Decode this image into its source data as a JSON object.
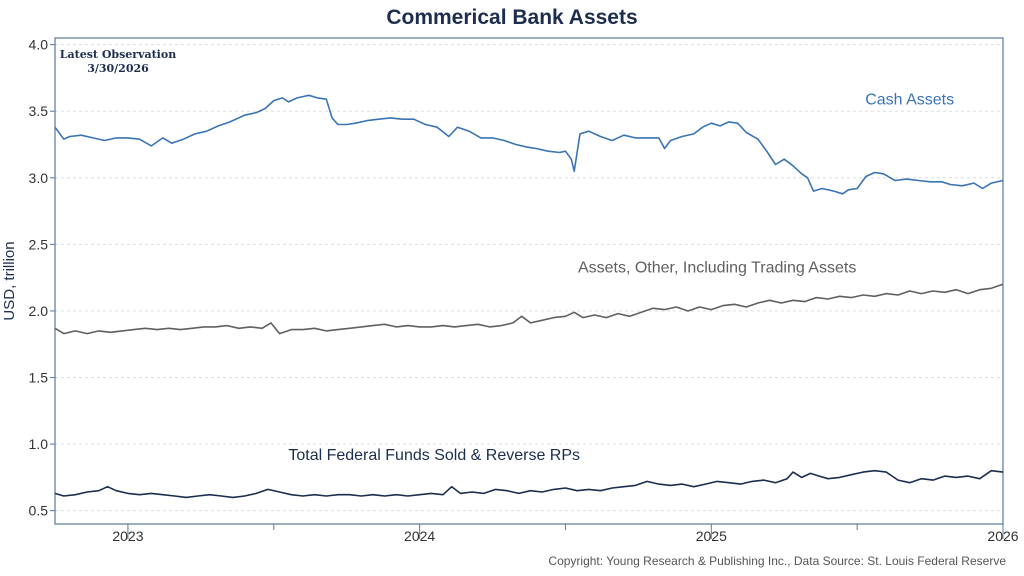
{
  "title": "Commerical Bank Assets",
  "observation": {
    "heading": "Latest Observation",
    "date": "3/30/2026"
  },
  "copyright": "Copyright: Young Research & Publishing Inc., Data Source: St. Louis Federal Reserve",
  "colors": {
    "cash": "#3a74b4",
    "other": "#606060",
    "funds": "#1c2d4f",
    "axis": "#5a7a9a",
    "grid": "#dddddd"
  },
  "chart_data": {
    "type": "line",
    "title": "Commerical Bank Assets",
    "ylabel": "USD, trillion",
    "xlabel": "",
    "ylim": [
      0.4,
      4.05
    ],
    "yticks": [
      0.5,
      1.0,
      1.5,
      2.0,
      2.5,
      3.0,
      3.5,
      4.0
    ],
    "ytick_labels": [
      "0.5",
      "1.0",
      "1.5",
      "2.0",
      "2.5",
      "3.0",
      "3.5",
      "4.0"
    ],
    "xlim": [
      2022.75,
      2026.0
    ],
    "year_ticks": [
      2023,
      2024,
      2025,
      2026
    ],
    "x_labels": [
      {
        "x": 2023.0,
        "text": "2023"
      },
      {
        "x": 2024.0,
        "text": "2024"
      },
      {
        "x": 2025.0,
        "text": "2025"
      },
      {
        "x": 2026.0,
        "text": "2026"
      }
    ],
    "x_minor_ticks": [
      2023.5,
      2024.5,
      2025.5
    ],
    "grid": true,
    "series": [
      {
        "name": "Cash Assets",
        "label_at": {
          "x": 2025.68,
          "y": 3.55
        },
        "points": [
          [
            2022.75,
            3.38
          ],
          [
            2022.78,
            3.29
          ],
          [
            2022.8,
            3.31
          ],
          [
            2022.84,
            3.32
          ],
          [
            2022.88,
            3.3
          ],
          [
            2022.92,
            3.28
          ],
          [
            2022.96,
            3.3
          ],
          [
            2023.0,
            3.3
          ],
          [
            2023.04,
            3.29
          ],
          [
            2023.08,
            3.24
          ],
          [
            2023.12,
            3.3
          ],
          [
            2023.15,
            3.26
          ],
          [
            2023.19,
            3.29
          ],
          [
            2023.23,
            3.33
          ],
          [
            2023.27,
            3.35
          ],
          [
            2023.31,
            3.39
          ],
          [
            2023.35,
            3.42
          ],
          [
            2023.4,
            3.47
          ],
          [
            2023.44,
            3.49
          ],
          [
            2023.47,
            3.52
          ],
          [
            2023.5,
            3.58
          ],
          [
            2023.53,
            3.6
          ],
          [
            2023.55,
            3.57
          ],
          [
            2023.58,
            3.6
          ],
          [
            2023.6,
            3.61
          ],
          [
            2023.62,
            3.62
          ],
          [
            2023.65,
            3.6
          ],
          [
            2023.68,
            3.59
          ],
          [
            2023.7,
            3.45
          ],
          [
            2023.72,
            3.4
          ],
          [
            2023.75,
            3.4
          ],
          [
            2023.78,
            3.41
          ],
          [
            2023.82,
            3.43
          ],
          [
            2023.86,
            3.44
          ],
          [
            2023.9,
            3.45
          ],
          [
            2023.94,
            3.44
          ],
          [
            2023.98,
            3.44
          ],
          [
            2024.02,
            3.4
          ],
          [
            2024.06,
            3.38
          ],
          [
            2024.1,
            3.31
          ],
          [
            2024.13,
            3.38
          ],
          [
            2024.17,
            3.35
          ],
          [
            2024.21,
            3.3
          ],
          [
            2024.25,
            3.3
          ],
          [
            2024.29,
            3.28
          ],
          [
            2024.33,
            3.25
          ],
          [
            2024.37,
            3.23
          ],
          [
            2024.4,
            3.22
          ],
          [
            2024.44,
            3.2
          ],
          [
            2024.48,
            3.19
          ],
          [
            2024.5,
            3.2
          ],
          [
            2024.52,
            3.14
          ],
          [
            2024.53,
            3.05
          ],
          [
            2024.55,
            3.33
          ],
          [
            2024.58,
            3.35
          ],
          [
            2024.62,
            3.31
          ],
          [
            2024.66,
            3.28
          ],
          [
            2024.7,
            3.32
          ],
          [
            2024.74,
            3.3
          ],
          [
            2024.78,
            3.3
          ],
          [
            2024.82,
            3.3
          ],
          [
            2024.84,
            3.22
          ],
          [
            2024.86,
            3.28
          ],
          [
            2024.9,
            3.31
          ],
          [
            2024.94,
            3.33
          ],
          [
            2024.97,
            3.38
          ],
          [
            2025.0,
            3.41
          ],
          [
            2025.03,
            3.39
          ],
          [
            2025.06,
            3.42
          ],
          [
            2025.09,
            3.41
          ],
          [
            2025.12,
            3.34
          ],
          [
            2025.16,
            3.29
          ],
          [
            2025.19,
            3.2
          ],
          [
            2025.22,
            3.1
          ],
          [
            2025.25,
            3.14
          ],
          [
            2025.28,
            3.09
          ],
          [
            2025.31,
            3.03
          ],
          [
            2025.33,
            3.0
          ],
          [
            2025.35,
            2.9
          ],
          [
            2025.38,
            2.92
          ],
          [
            2025.42,
            2.9
          ],
          [
            2025.45,
            2.88
          ],
          [
            2025.47,
            2.91
          ],
          [
            2025.5,
            2.92
          ],
          [
            2025.53,
            3.01
          ],
          [
            2025.56,
            3.04
          ],
          [
            2025.59,
            3.03
          ],
          [
            2025.63,
            2.98
          ],
          [
            2025.67,
            2.99
          ],
          [
            2025.71,
            2.98
          ],
          [
            2025.75,
            2.97
          ],
          [
            2025.79,
            2.97
          ],
          [
            2025.82,
            2.95
          ],
          [
            2025.86,
            2.94
          ],
          [
            2025.9,
            2.96
          ],
          [
            2025.93,
            2.92
          ],
          [
            2025.96,
            2.96
          ],
          [
            2026.0,
            2.98
          ]
        ]
      },
      {
        "name": "Assets, Other, Including Trading Assets",
        "label_at": {
          "x": 2025.02,
          "y": 2.29
        },
        "points": [
          [
            2022.75,
            1.87
          ],
          [
            2022.78,
            1.83
          ],
          [
            2022.82,
            1.85
          ],
          [
            2022.86,
            1.83
          ],
          [
            2022.9,
            1.85
          ],
          [
            2022.94,
            1.84
          ],
          [
            2022.98,
            1.85
          ],
          [
            2023.02,
            1.86
          ],
          [
            2023.06,
            1.87
          ],
          [
            2023.1,
            1.86
          ],
          [
            2023.14,
            1.87
          ],
          [
            2023.18,
            1.86
          ],
          [
            2023.22,
            1.87
          ],
          [
            2023.26,
            1.88
          ],
          [
            2023.3,
            1.88
          ],
          [
            2023.34,
            1.89
          ],
          [
            2023.38,
            1.87
          ],
          [
            2023.42,
            1.88
          ],
          [
            2023.46,
            1.87
          ],
          [
            2023.49,
            1.91
          ],
          [
            2023.52,
            1.83
          ],
          [
            2023.56,
            1.86
          ],
          [
            2023.6,
            1.86
          ],
          [
            2023.64,
            1.87
          ],
          [
            2023.68,
            1.85
          ],
          [
            2023.72,
            1.86
          ],
          [
            2023.76,
            1.87
          ],
          [
            2023.8,
            1.88
          ],
          [
            2023.84,
            1.89
          ],
          [
            2023.88,
            1.9
          ],
          [
            2023.92,
            1.88
          ],
          [
            2023.96,
            1.89
          ],
          [
            2024.0,
            1.88
          ],
          [
            2024.04,
            1.88
          ],
          [
            2024.08,
            1.89
          ],
          [
            2024.12,
            1.88
          ],
          [
            2024.16,
            1.89
          ],
          [
            2024.2,
            1.9
          ],
          [
            2024.24,
            1.88
          ],
          [
            2024.28,
            1.89
          ],
          [
            2024.32,
            1.91
          ],
          [
            2024.35,
            1.96
          ],
          [
            2024.38,
            1.91
          ],
          [
            2024.42,
            1.93
          ],
          [
            2024.46,
            1.95
          ],
          [
            2024.5,
            1.96
          ],
          [
            2024.53,
            1.99
          ],
          [
            2024.56,
            1.95
          ],
          [
            2024.6,
            1.97
          ],
          [
            2024.64,
            1.95
          ],
          [
            2024.68,
            1.98
          ],
          [
            2024.72,
            1.96
          ],
          [
            2024.76,
            1.99
          ],
          [
            2024.8,
            2.02
          ],
          [
            2024.84,
            2.01
          ],
          [
            2024.88,
            2.03
          ],
          [
            2024.92,
            2.0
          ],
          [
            2024.96,
            2.03
          ],
          [
            2025.0,
            2.01
          ],
          [
            2025.04,
            2.04
          ],
          [
            2025.08,
            2.05
          ],
          [
            2025.12,
            2.03
          ],
          [
            2025.16,
            2.06
          ],
          [
            2025.2,
            2.08
          ],
          [
            2025.24,
            2.06
          ],
          [
            2025.28,
            2.08
          ],
          [
            2025.32,
            2.07
          ],
          [
            2025.36,
            2.1
          ],
          [
            2025.4,
            2.09
          ],
          [
            2025.44,
            2.11
          ],
          [
            2025.48,
            2.1
          ],
          [
            2025.52,
            2.12
          ],
          [
            2025.56,
            2.11
          ],
          [
            2025.6,
            2.13
          ],
          [
            2025.64,
            2.12
          ],
          [
            2025.68,
            2.15
          ],
          [
            2025.72,
            2.13
          ],
          [
            2025.76,
            2.15
          ],
          [
            2025.8,
            2.14
          ],
          [
            2025.84,
            2.16
          ],
          [
            2025.88,
            2.13
          ],
          [
            2025.92,
            2.16
          ],
          [
            2025.96,
            2.17
          ],
          [
            2026.0,
            2.2
          ]
        ]
      },
      {
        "name": "Total Federal Funds Sold & Reverse RPs",
        "label_at": {
          "x": 2024.05,
          "y": 0.88
        },
        "points": [
          [
            2022.75,
            0.63
          ],
          [
            2022.78,
            0.61
          ],
          [
            2022.82,
            0.62
          ],
          [
            2022.86,
            0.64
          ],
          [
            2022.9,
            0.65
          ],
          [
            2022.93,
            0.68
          ],
          [
            2022.96,
            0.65
          ],
          [
            2023.0,
            0.63
          ],
          [
            2023.04,
            0.62
          ],
          [
            2023.08,
            0.63
          ],
          [
            2023.12,
            0.62
          ],
          [
            2023.16,
            0.61
          ],
          [
            2023.2,
            0.6
          ],
          [
            2023.24,
            0.61
          ],
          [
            2023.28,
            0.62
          ],
          [
            2023.32,
            0.61
          ],
          [
            2023.36,
            0.6
          ],
          [
            2023.4,
            0.61
          ],
          [
            2023.44,
            0.63
          ],
          [
            2023.48,
            0.66
          ],
          [
            2023.52,
            0.64
          ],
          [
            2023.56,
            0.62
          ],
          [
            2023.6,
            0.61
          ],
          [
            2023.64,
            0.62
          ],
          [
            2023.68,
            0.61
          ],
          [
            2023.72,
            0.62
          ],
          [
            2023.76,
            0.62
          ],
          [
            2023.8,
            0.61
          ],
          [
            2023.84,
            0.62
          ],
          [
            2023.88,
            0.61
          ],
          [
            2023.92,
            0.62
          ],
          [
            2023.96,
            0.61
          ],
          [
            2024.0,
            0.62
          ],
          [
            2024.04,
            0.63
          ],
          [
            2024.08,
            0.62
          ],
          [
            2024.11,
            0.68
          ],
          [
            2024.14,
            0.63
          ],
          [
            2024.18,
            0.64
          ],
          [
            2024.22,
            0.63
          ],
          [
            2024.26,
            0.66
          ],
          [
            2024.3,
            0.65
          ],
          [
            2024.34,
            0.63
          ],
          [
            2024.38,
            0.65
          ],
          [
            2024.42,
            0.64
          ],
          [
            2024.46,
            0.66
          ],
          [
            2024.5,
            0.67
          ],
          [
            2024.54,
            0.65
          ],
          [
            2024.58,
            0.66
          ],
          [
            2024.62,
            0.65
          ],
          [
            2024.66,
            0.67
          ],
          [
            2024.7,
            0.68
          ],
          [
            2024.74,
            0.69
          ],
          [
            2024.78,
            0.72
          ],
          [
            2024.82,
            0.7
          ],
          [
            2024.86,
            0.69
          ],
          [
            2024.9,
            0.7
          ],
          [
            2024.94,
            0.68
          ],
          [
            2024.98,
            0.7
          ],
          [
            2025.02,
            0.72
          ],
          [
            2025.06,
            0.71
          ],
          [
            2025.1,
            0.7
          ],
          [
            2025.14,
            0.72
          ],
          [
            2025.18,
            0.73
          ],
          [
            2025.22,
            0.71
          ],
          [
            2025.26,
            0.74
          ],
          [
            2025.28,
            0.79
          ],
          [
            2025.31,
            0.75
          ],
          [
            2025.34,
            0.78
          ],
          [
            2025.37,
            0.76
          ],
          [
            2025.4,
            0.74
          ],
          [
            2025.44,
            0.75
          ],
          [
            2025.48,
            0.77
          ],
          [
            2025.52,
            0.79
          ],
          [
            2025.56,
            0.8
          ],
          [
            2025.6,
            0.79
          ],
          [
            2025.64,
            0.73
          ],
          [
            2025.68,
            0.71
          ],
          [
            2025.72,
            0.74
          ],
          [
            2025.76,
            0.73
          ],
          [
            2025.8,
            0.76
          ],
          [
            2025.84,
            0.75
          ],
          [
            2025.88,
            0.76
          ],
          [
            2025.92,
            0.74
          ],
          [
            2025.96,
            0.8
          ],
          [
            2026.0,
            0.79
          ]
        ]
      }
    ]
  }
}
